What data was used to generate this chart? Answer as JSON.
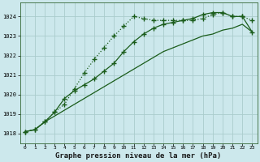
{
  "title": "Graphe pression niveau de la mer (hPa)",
  "background_color": "#cce8ec",
  "grid_color": "#aacccc",
  "line_color": "#1a5c1a",
  "xlim": [
    -0.5,
    23.5
  ],
  "ylim": [
    1017.5,
    1024.7
  ],
  "yticks": [
    1018,
    1019,
    1020,
    1021,
    1022,
    1023,
    1024
  ],
  "xticks": [
    0,
    1,
    2,
    3,
    4,
    5,
    6,
    7,
    8,
    9,
    10,
    11,
    12,
    13,
    14,
    15,
    16,
    17,
    18,
    19,
    20,
    21,
    22,
    23
  ],
  "series1_x": [
    0,
    1,
    2,
    3,
    4,
    5,
    6,
    7,
    8,
    9,
    10,
    11,
    12,
    13,
    14,
    15,
    16,
    17,
    18,
    19,
    20,
    21,
    22,
    23
  ],
  "series1_y": [
    1018.1,
    1018.2,
    1018.6,
    1019.1,
    1019.5,
    1020.3,
    1021.1,
    1021.8,
    1022.4,
    1023.0,
    1023.5,
    1024.0,
    1023.9,
    1023.8,
    1023.8,
    1023.8,
    1023.8,
    1023.8,
    1023.9,
    1024.1,
    1024.2,
    1024.0,
    1024.0,
    1023.8
  ],
  "series2_x": [
    0,
    1,
    2,
    3,
    4,
    5,
    6,
    7,
    8,
    9,
    10,
    11,
    12,
    13,
    14,
    15,
    16,
    17,
    18,
    19,
    20,
    21,
    22,
    23
  ],
  "series2_y": [
    1018.1,
    1018.2,
    1018.6,
    1018.9,
    1019.2,
    1019.5,
    1019.8,
    1020.1,
    1020.4,
    1020.7,
    1021.0,
    1021.3,
    1021.6,
    1021.9,
    1022.2,
    1022.4,
    1022.6,
    1022.8,
    1023.0,
    1023.1,
    1023.3,
    1023.4,
    1023.6,
    1023.2
  ],
  "series3_x": [
    0,
    1,
    2,
    3,
    4,
    5,
    6,
    7,
    8,
    9,
    10,
    11,
    12,
    13,
    14,
    15,
    16,
    17,
    18,
    19,
    20,
    21,
    22,
    23
  ],
  "series3_y": [
    1018.1,
    1018.2,
    1018.6,
    1019.1,
    1019.8,
    1020.2,
    1020.5,
    1020.8,
    1021.2,
    1021.6,
    1022.2,
    1022.7,
    1023.1,
    1023.4,
    1023.6,
    1023.7,
    1023.8,
    1023.9,
    1024.1,
    1024.2,
    1024.2,
    1024.0,
    1024.0,
    1023.2
  ]
}
